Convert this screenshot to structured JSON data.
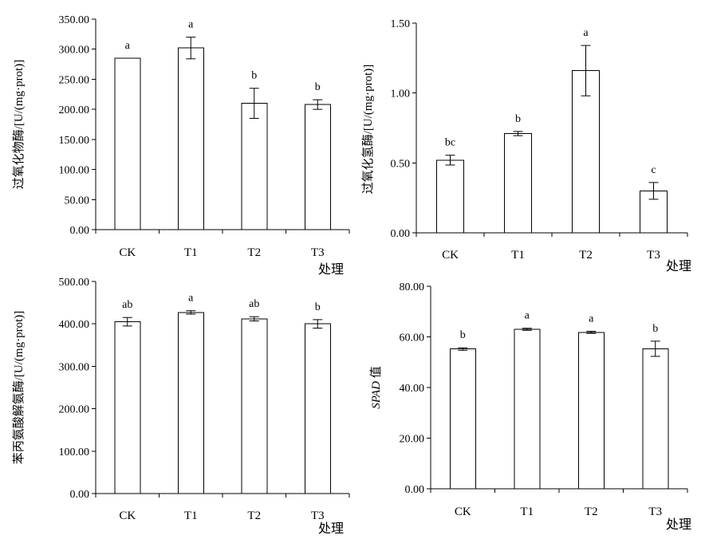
{
  "chart_data": [
    {
      "type": "bar",
      "categories": [
        "CK",
        "T1",
        "T2",
        "T3"
      ],
      "values": [
        285,
        302,
        210,
        208
      ],
      "errors": [
        0,
        18,
        25,
        8
      ],
      "significance": [
        "a",
        "a",
        "b",
        "b"
      ],
      "ylabel": "过氧化物酶/[U/(mg·prot)]",
      "xlabel": "处理",
      "ylim": [
        0,
        350
      ],
      "yticks": [
        "0.00",
        "50.00",
        "100.00",
        "150.00",
        "200.00",
        "250.00",
        "300.00",
        "350.00"
      ],
      "grid": false
    },
    {
      "type": "bar",
      "categories": [
        "CK",
        "T1",
        "T2",
        "T3"
      ],
      "values": [
        0.52,
        0.71,
        1.16,
        0.3
      ],
      "errors": [
        0.035,
        0.015,
        0.18,
        0.06
      ],
      "significance": [
        "bc",
        "b",
        "a",
        "c"
      ],
      "ylabel": "过氧化氢酶/[U/(mg·prot)]",
      "xlabel": "处理",
      "ylim": [
        0,
        1.5
      ],
      "yticks": [
        "0.00",
        "0.50",
        "1.00",
        "1.50"
      ],
      "grid": false
    },
    {
      "type": "bar",
      "categories": [
        "CK",
        "T1",
        "T2",
        "T3"
      ],
      "values": [
        405,
        427,
        412,
        400
      ],
      "errors": [
        10,
        4,
        5,
        10
      ],
      "significance": [
        "ab",
        "a",
        "ab",
        "b"
      ],
      "ylabel": "苯丙氨酸解氨酶/[U/(mg·prot)]",
      "xlabel": "处理",
      "ylim": [
        0,
        500
      ],
      "yticks": [
        "0.00",
        "100.00",
        "200.00",
        "300.00",
        "400.00",
        "500.00"
      ],
      "grid": false
    },
    {
      "type": "bar",
      "categories": [
        "CK",
        "T1",
        "T2",
        "T3"
      ],
      "values": [
        55.2,
        63.0,
        61.8,
        55.3
      ],
      "errors": [
        0.5,
        0.4,
        0.4,
        3.0
      ],
      "significance": [
        "b",
        "a",
        "a",
        "b"
      ],
      "ylabel_italic": "SPAD",
      "ylabel_rest": " 值",
      "xlabel": "处理",
      "ylim": [
        0,
        80
      ],
      "yticks": [
        "0.00",
        "20.00",
        "40.00",
        "60.00",
        "80.00"
      ],
      "grid": false
    }
  ]
}
